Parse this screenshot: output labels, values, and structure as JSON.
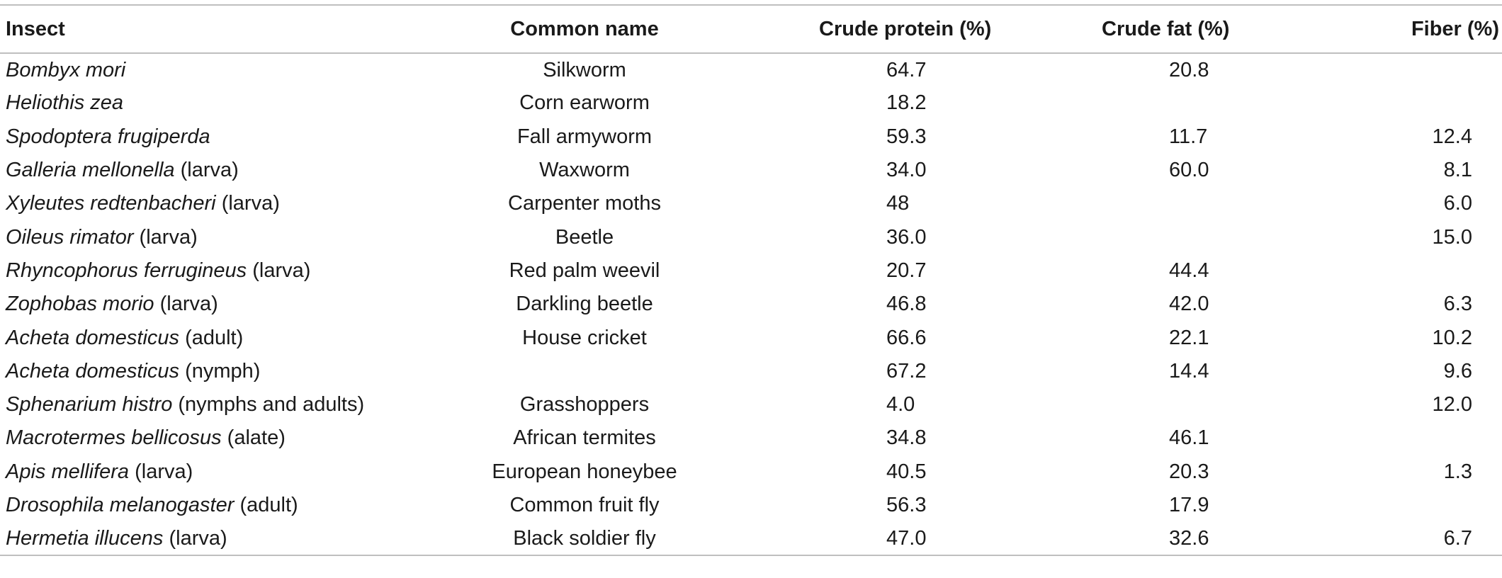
{
  "table": {
    "headers": {
      "insect": "Insect",
      "common_name": "Common name",
      "crude_protein": "Crude protein (%)",
      "crude_fat": "Crude fat (%)",
      "fiber": "Fiber (%)"
    },
    "rows": [
      {
        "sci": "Bombyx mori",
        "stage": "",
        "common": "Silkworm",
        "protein": "64.7",
        "fat": "20.8",
        "fiber": ""
      },
      {
        "sci": "Heliothis zea",
        "stage": "",
        "common": "Corn earworm",
        "protein": "18.2",
        "fat": "",
        "fiber": ""
      },
      {
        "sci": "Spodoptera frugiperda",
        "stage": "",
        "common": "Fall armyworm",
        "protein": "59.3",
        "fat": "11.7",
        "fiber": "12.4"
      },
      {
        "sci": "Galleria mellonella",
        "stage": " (larva)",
        "common": "Waxworm",
        "protein": "34.0",
        "fat": "60.0",
        "fiber": "8.1"
      },
      {
        "sci": "Xyleutes redtenbacheri",
        "stage": " (larva)",
        "common": "Carpenter moths",
        "protein": "48",
        "fat": "",
        "fiber": "6.0"
      },
      {
        "sci": "Oileus rimator",
        "stage": " (larva)",
        "common": "Beetle",
        "protein": "36.0",
        "fat": "",
        "fiber": "15.0"
      },
      {
        "sci": "Rhyncophorus ferrugineus",
        "stage": " (larva)",
        "common": "Red palm weevil",
        "protein": "20.7",
        "fat": "44.4",
        "fiber": ""
      },
      {
        "sci": "Zophobas morio",
        "stage": " (larva)",
        "common": "Darkling beetle",
        "protein": "46.8",
        "fat": "42.0",
        "fiber": "6.3"
      },
      {
        "sci": "Acheta domesticus",
        "stage": " (adult)",
        "common": "House cricket",
        "protein": "66.6",
        "fat": "22.1",
        "fiber": "10.2"
      },
      {
        "sci": "Acheta domesticus",
        "stage": " (nymph)",
        "common": "",
        "protein": "67.2",
        "fat": "14.4",
        "fiber": "9.6"
      },
      {
        "sci": "Sphenarium histro",
        "stage": " (nymphs and adults)",
        "common": "Grasshoppers",
        "protein": "4.0",
        "fat": "",
        "fiber": "12.0"
      },
      {
        "sci": "Macrotermes bellicosus",
        "stage": " (alate)",
        "common": "African termites",
        "protein": "34.8",
        "fat": "46.1",
        "fiber": ""
      },
      {
        "sci": "Apis mellifera",
        "stage": " (larva)",
        "common": "European honeybee",
        "protein": "40.5",
        "fat": "20.3",
        "fiber": "1.3"
      },
      {
        "sci": "Drosophila melanogaster",
        "stage": " (adult)",
        "common": "Common fruit fly",
        "protein": "56.3",
        "fat": "17.9",
        "fiber": ""
      },
      {
        "sci": "Hermetia illucens",
        "stage": " (larva)",
        "common": "Black soldier fly",
        "protein": "47.0",
        "fat": "32.6",
        "fiber": "6.7"
      }
    ]
  }
}
